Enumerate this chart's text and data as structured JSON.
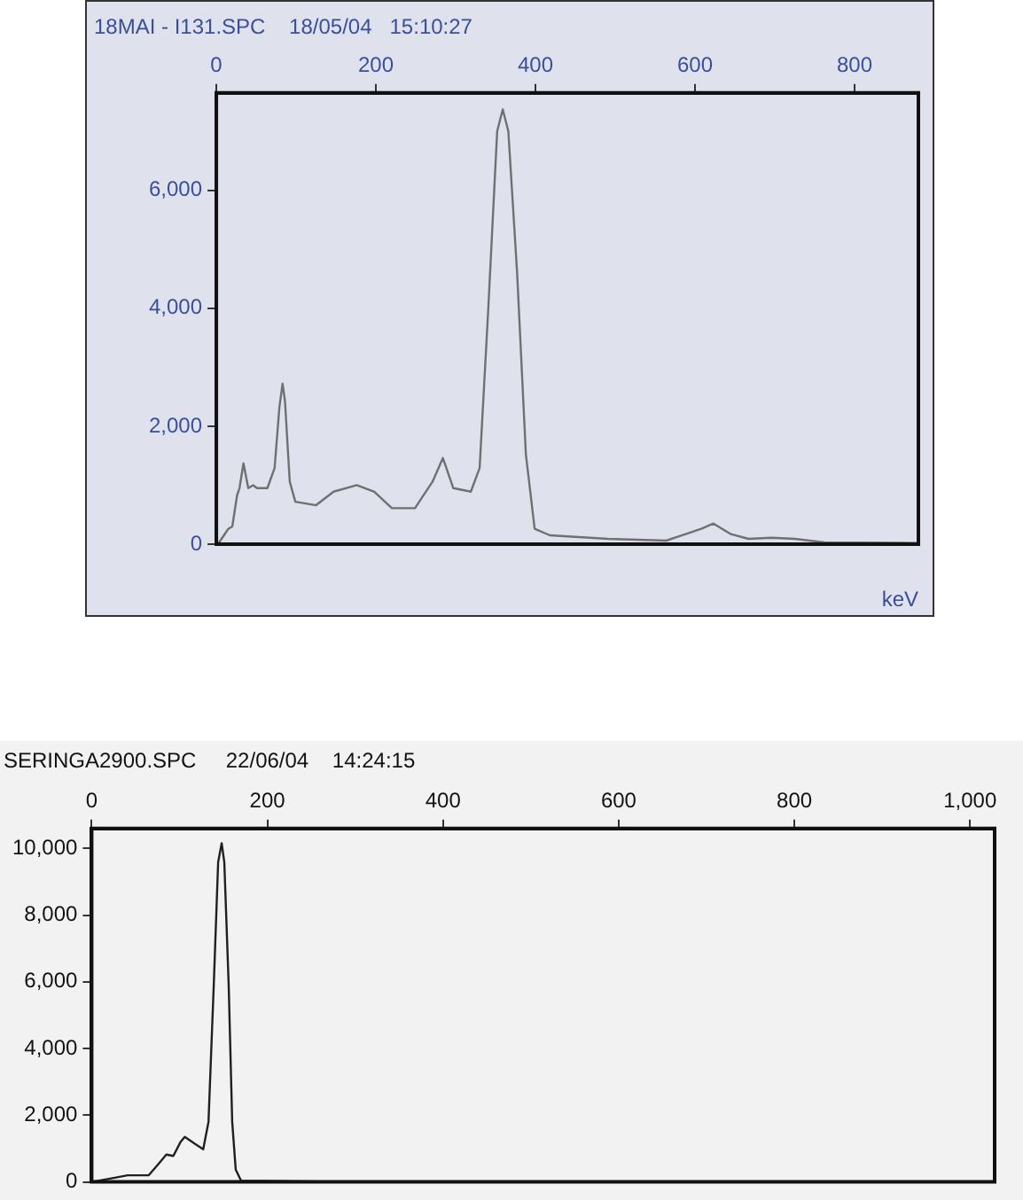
{
  "chart_data": [
    {
      "type": "line",
      "title": "18MAI - I131.SPC    18/05/04   15:10:27",
      "xlabel": "keV",
      "grid": false,
      "legend": false,
      "marker": "none",
      "line_style": "solid",
      "xlim": [
        0,
        880
      ],
      "ylim": [
        0,
        7650
      ],
      "xticks": [
        0,
        200,
        400,
        600,
        800
      ],
      "yticks": [
        0,
        {
          "value": 2000,
          "label": "2,000"
        },
        {
          "value": 4000,
          "label": "4,000"
        },
        {
          "value": 6000,
          "label": "6,000"
        }
      ],
      "x": [
        2,
        15,
        20,
        26,
        29,
        34,
        40,
        46,
        51,
        64,
        73,
        79,
        83,
        86,
        92,
        99,
        125,
        147,
        176,
        198,
        220,
        249,
        271,
        284,
        297,
        319,
        330,
        341,
        352,
        359,
        366,
        377,
        388,
        399,
        418,
        491,
        564,
        608,
        623,
        645,
        667,
        696,
        725,
        762,
        879
      ],
      "series": [
        {
          "color": "#707070",
          "values": [
            0,
            260,
            300,
            830,
            950,
            1370,
            950,
            1000,
            950,
            950,
            1290,
            2320,
            2720,
            2430,
            1060,
            720,
            660,
            890,
            1000,
            890,
            610,
            610,
            1060,
            1460,
            950,
            890,
            1290,
            4030,
            7000,
            7370,
            7000,
            4600,
            1520,
            260,
            150,
            90,
            60,
            260,
            350,
            170,
            90,
            110,
            90,
            30,
            20
          ]
        }
      ]
    },
    {
      "type": "line",
      "title": "SERINGA2900.SPC     22/06/04    14:24:15",
      "grid": false,
      "legend": false,
      "marker": "none",
      "line_style": "solid",
      "xlim": [
        0,
        1028
      ],
      "ylim": [
        0,
        10600
      ],
      "xticks": [
        0,
        200,
        400,
        600,
        800,
        {
          "value": 1000,
          "label": "1,000"
        }
      ],
      "yticks": [
        0,
        {
          "value": 2000,
          "label": "2,000"
        },
        {
          "value": 4000,
          "label": "4,000"
        },
        {
          "value": 6000,
          "label": "6,000"
        },
        {
          "value": 8000,
          "label": "8,000"
        },
        {
          "value": 10000,
          "label": "10,000"
        }
      ],
      "x": [
        0,
        25,
        41,
        65,
        77,
        85,
        93,
        101,
        106,
        117,
        127,
        133,
        139,
        144,
        148,
        151,
        156,
        160,
        164,
        170,
        303,
        600,
        1028
      ],
      "series": [
        {
          "color": "#202020",
          "values": [
            0,
            120,
            200,
            200,
            570,
            820,
            780,
            1190,
            1350,
            1150,
            980,
            1800,
            5900,
            9590,
            10160,
            9590,
            5900,
            1800,
            370,
            40,
            0,
            0,
            0
          ]
        }
      ]
    }
  ]
}
